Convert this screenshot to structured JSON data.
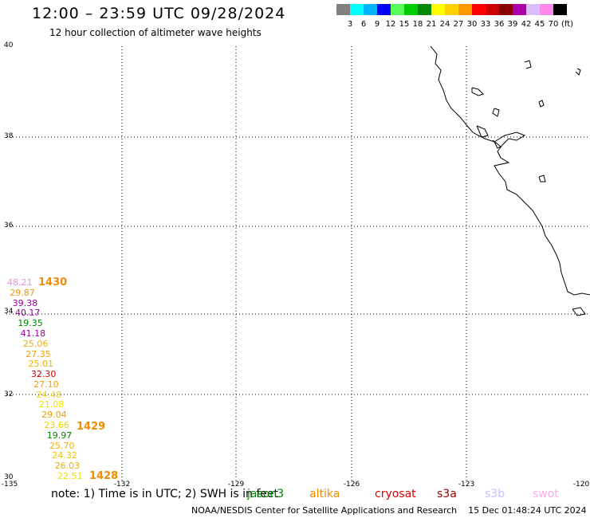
{
  "header": {
    "title": "12:00 – 23:59 UTC 09/28/2024",
    "subtitle": "12 hour collection of altimeter wave heights"
  },
  "colorbar": {
    "colors": [
      "#808080",
      "#00ffff",
      "#00b4ff",
      "#0000ff",
      "#55ff55",
      "#00cc00",
      "#008800",
      "#ffff00",
      "#ffd000",
      "#ff9900",
      "#ff0000",
      "#cc0000",
      "#880000",
      "#aa00aa",
      "#ddbbff",
      "#ff88ee",
      "#000000"
    ],
    "labels": [
      "3",
      "6",
      "9",
      "12",
      "15",
      "18",
      "21",
      "24",
      "27",
      "30",
      "33",
      "36",
      "39",
      "42",
      "45",
      "70"
    ],
    "unit": "(ft)"
  },
  "axes": {
    "lat_labels": [
      "40",
      "38",
      "36",
      "34",
      "32",
      "30"
    ],
    "lon_labels": [
      "-135",
      "-132",
      "-129",
      "-126",
      "-123",
      "-120"
    ]
  },
  "observations": [
    {
      "value": "48.21",
      "color": "#ee88ee"
    },
    {
      "value": "29.87",
      "color": "#ee9900"
    },
    {
      "value": "39.38",
      "color": "#990099"
    },
    {
      "value": "40.17",
      "color": "#990099"
    },
    {
      "value": "19.35",
      "color": "#008800"
    },
    {
      "value": "41.18",
      "color": "#990099"
    },
    {
      "value": "25.06",
      "color": "#f0b000"
    },
    {
      "value": "27.35",
      "color": "#f0a000"
    },
    {
      "value": "25.01",
      "color": "#f0b000"
    },
    {
      "value": "32.30",
      "color": "#cc0000"
    },
    {
      "value": "27.10",
      "color": "#f0a000"
    },
    {
      "value": "24.48",
      "color": "#f0d000"
    },
    {
      "value": "21.08",
      "color": "#f0e000"
    },
    {
      "value": "29.04",
      "color": "#f0a000"
    },
    {
      "value": "23.66",
      "color": "#f0d000"
    },
    {
      "value": "19.97",
      "color": "#008800"
    },
    {
      "value": "25.70",
      "color": "#f0b000"
    },
    {
      "value": "24.32",
      "color": "#f0c000"
    },
    {
      "value": "26.03",
      "color": "#f0b000"
    },
    {
      "value": "22.51",
      "color": "#f0e000"
    }
  ],
  "time_tags": [
    "1430",
    "1429",
    "1428"
  ],
  "footer": {
    "note": "note:  1) Time is in UTC;  2) SWH is in feet",
    "legend": [
      {
        "label": "jason3",
        "color": "#008800"
      },
      {
        "label": "altika",
        "color": "#f08c00"
      },
      {
        "label": "cryosat",
        "color": "#dd0000"
      },
      {
        "label": "s3a",
        "color": "#990000"
      },
      {
        "label": "s3b",
        "color": "#ccbbff"
      },
      {
        "label": "swot",
        "color": "#ffaaee"
      }
    ],
    "credit": "NOAA/NESDIS Center for Satellite Applications and Research",
    "timestamp": "15 Dec 01:48:24 UTC 2024"
  }
}
